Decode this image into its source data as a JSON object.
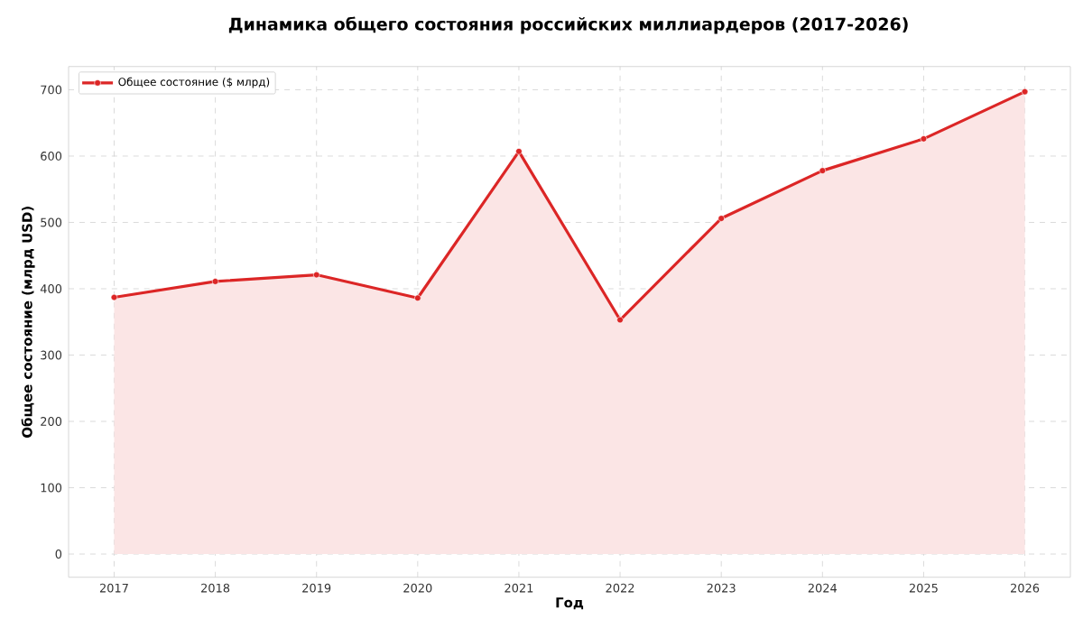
{
  "chart_data": {
    "type": "area",
    "title": "Динамика общего состояния российских миллиардеров (2017-2026)",
    "xlabel": "Год",
    "ylabel": "Общее состояние (млрд USD)",
    "x": [
      2017,
      2018,
      2019,
      2020,
      2021,
      2022,
      2023,
      2024,
      2025,
      2026
    ],
    "series": [
      {
        "name": "Общее состояние ($ млрд)",
        "color": "#dc2626",
        "values": [
          387,
          411,
          421,
          386,
          607,
          353,
          506,
          578,
          626,
          697
        ]
      }
    ],
    "xlim": [
      2016.55,
      2026.45
    ],
    "ylim": [
      -35,
      735
    ],
    "xticks": [
      2017,
      2018,
      2019,
      2020,
      2021,
      2022,
      2023,
      2024,
      2025,
      2026
    ],
    "yticks": [
      0,
      100,
      200,
      300,
      400,
      500,
      600,
      700
    ],
    "grid": true,
    "legend": "top left",
    "marker": "circle",
    "line_style": "solid"
  }
}
